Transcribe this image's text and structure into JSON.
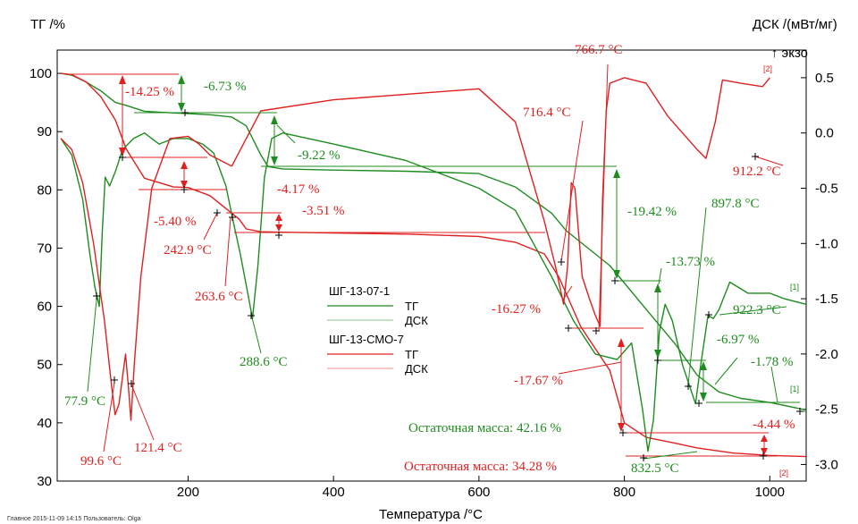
{
  "chart_data": {
    "type": "line",
    "xlabel": "Температура /°C",
    "ylabel_left": "ТГ /%",
    "ylabel_right": "ДСК /(мВт/мг)",
    "exo_label": "↑ экзо",
    "xlim": [
      20,
      1050
    ],
    "ylim_left": [
      30,
      104
    ],
    "ylim_right": [
      -3.15,
      0.75
    ],
    "x_ticks": [
      200,
      400,
      600,
      800,
      1000
    ],
    "y_ticks_left": [
      30,
      40,
      50,
      60,
      70,
      80,
      90,
      100
    ],
    "y_ticks_right": [
      "0.5",
      "0.0",
      "-0.5",
      "-1.0",
      "-1.5",
      "-2.0",
      "-2.5",
      "-3.0"
    ],
    "colors": {
      "green": "#1e8c1e",
      "red": "#e02020"
    },
    "legend": {
      "sample1": "ШГ-13-07-1",
      "sample2": "ШГ-13-СМО-7",
      "tg": "ТГ",
      "dsc": "ДСК"
    },
    "series": [
      {
        "sample": "ШГ-13-07-1",
        "signal": "ТГ",
        "axis": "left",
        "color": "green",
        "x": [
          25,
          40,
          60,
          80,
          100,
          115,
          140,
          180,
          200,
          230,
          260,
          280,
          300,
          310,
          330,
          400,
          500,
          600,
          650,
          700,
          720,
          750,
          780,
          800,
          830,
          850,
          870,
          900,
          930,
          960,
          1000,
          1050
        ],
        "y": [
          100,
          99.7,
          98.5,
          97,
          95,
          94.5,
          93.5,
          93.2,
          93.1,
          92.9,
          92.5,
          91,
          86,
          84,
          83.6,
          83.4,
          83.2,
          82.8,
          80.5,
          76,
          73,
          70,
          67,
          64,
          59.5,
          56.5,
          53.5,
          48.2,
          45.3,
          44.2,
          43.5,
          42.2
        ]
      },
      {
        "sample": "ШГ-13-СМО-7",
        "signal": "ТГ",
        "axis": "left",
        "color": "red",
        "x": [
          25,
          40,
          60,
          80,
          100,
          115,
          140,
          180,
          200,
          230,
          260,
          270,
          280,
          300,
          350,
          400,
          500,
          600,
          650,
          690,
          710,
          740,
          780,
          800,
          830,
          870,
          900,
          950,
          1000,
          1050
        ],
        "y": [
          100,
          99.8,
          98.5,
          96,
          92,
          87,
          82,
          80.5,
          80.4,
          79,
          76,
          75,
          73.3,
          72.8,
          72.7,
          72.6,
          72.4,
          72,
          71,
          69,
          65,
          56.5,
          49,
          40,
          37.5,
          36.5,
          35.7,
          34.8,
          34.4,
          34.2
        ]
      },
      {
        "sample": "ШГ-13-07-1",
        "signal": "ДСК",
        "axis": "right",
        "color": "green",
        "x": [
          25,
          40,
          55,
          65,
          72,
          77.9,
          82,
          86,
          92,
          100,
          110,
          125,
          140,
          160,
          180,
          200,
          220,
          235,
          242,
          252,
          262,
          272,
          282,
          288.6,
          296,
          305,
          315,
          330,
          400,
          500,
          600,
          650,
          700,
          730,
          760,
          790,
          810,
          825,
          832.5,
          840,
          848,
          856,
          866,
          880,
          897.8,
          905,
          915,
          922.3,
          930,
          945,
          970,
          1000,
          1020,
          1050
        ],
        "y": [
          -0.05,
          -0.2,
          -0.6,
          -1.1,
          -1.4,
          -1.57,
          -0.9,
          -0.4,
          -0.48,
          -0.35,
          -0.15,
          -0.05,
          0.0,
          -0.1,
          -0.05,
          -0.05,
          -0.1,
          -0.18,
          -0.3,
          -0.48,
          -0.8,
          -1.1,
          -1.45,
          -1.68,
          -1.2,
          -0.4,
          -0.05,
          0.0,
          -0.1,
          -0.25,
          -0.5,
          -0.7,
          -1.3,
          -1.7,
          -2.0,
          -2.05,
          -1.9,
          -2.5,
          -2.88,
          -2.6,
          -1.8,
          -1.55,
          -1.7,
          -2.1,
          -2.45,
          -2.1,
          -1.65,
          -1.68,
          -1.6,
          -1.35,
          -1.45,
          -1.45,
          -1.5,
          -1.55
        ]
      },
      {
        "sample": "ШГ-13-СМО-7",
        "signal": "ДСК",
        "axis": "right",
        "color": "red",
        "x": [
          25,
          40,
          55,
          70,
          85,
          95,
          99.6,
          105,
          110,
          114,
          118,
          121.4,
          126,
          135,
          150,
          175,
          200,
          215,
          230,
          260,
          300,
          400,
          500,
          600,
          650,
          690,
          705,
          716.4,
          722,
          727,
          732,
          742,
          752,
          760,
          766.7,
          770,
          775,
          780,
          800,
          830,
          860,
          880,
          900,
          912.2,
          925,
          935,
          960,
          990,
          1000
        ],
        "y": [
          -0.05,
          -0.15,
          -0.45,
          -1.0,
          -1.7,
          -2.3,
          -2.55,
          -2.45,
          -2.2,
          -2.0,
          -2.3,
          -2.6,
          -2.1,
          -1.3,
          -0.5,
          -0.05,
          -0.03,
          -0.1,
          -0.2,
          -0.3,
          0.2,
          0.3,
          0.35,
          0.4,
          0.1,
          -0.8,
          -1.2,
          -1.55,
          -1.2,
          -0.45,
          -0.5,
          -1.3,
          -1.5,
          -1.65,
          -1.75,
          -0.6,
          0.2,
          0.45,
          0.5,
          0.45,
          0.15,
          0.0,
          -0.15,
          -0.23,
          0.1,
          0.48,
          0.45,
          0.42,
          0.5
        ]
      }
    ],
    "annotations": {
      "tg_steps_red": [
        "-14.25 %",
        "-5.40 %",
        "-4.17 %",
        "-3.51 %",
        "-16.27 %",
        "-17.67 %",
        "-4.44 %"
      ],
      "tg_steps_green": [
        "-6.73 %",
        "-9.22 %",
        "-19.42 %",
        "-13.73 %",
        "-6.97 %",
        "-1.78 %"
      ],
      "peaks_green": [
        "77.9 °C",
        "288.6 °C",
        "832.5 °C",
        "897.8 °C",
        "922.3 °C"
      ],
      "peaks_red": [
        "99.6 °C",
        "121.4 °C",
        "242.9 °C",
        "263.6 °C",
        "716.4 °C",
        "766.7 °C",
        "912.2 °C"
      ],
      "residual_green": "Остаточная масса: 42.16 %",
      "residual_red": "Остаточная масса: 34.28 %",
      "curve_tags": [
        "[1]",
        "[1]",
        "[2]",
        "[2]"
      ]
    },
    "footer": "Главное    2015-11-09 14:15    Пользователь: Olga"
  }
}
